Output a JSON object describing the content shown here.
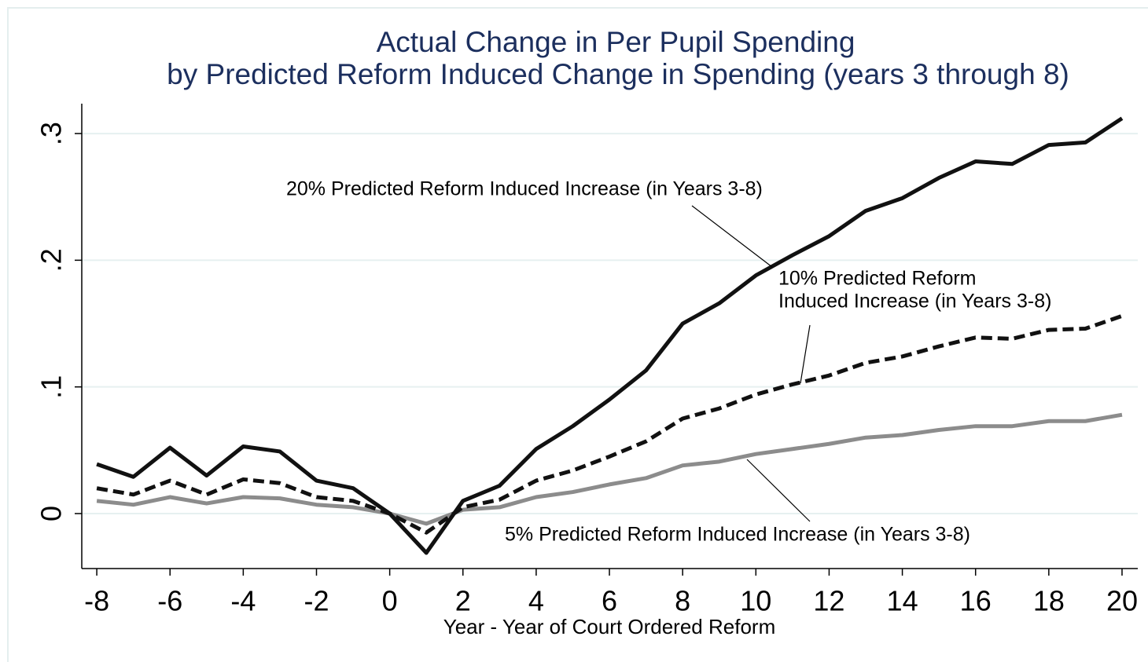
{
  "chart_data": {
    "type": "line",
    "title": [
      "Actual Change in Per Pupil Spending",
      "by Predicted Reform Induced Change in Spending (years 3 through 8)"
    ],
    "xlabel": "Year - Year of Court Ordered Reform",
    "x": [
      -8,
      -7,
      -6,
      -5,
      -4,
      -3,
      -2,
      -1,
      0,
      1,
      2,
      3,
      4,
      5,
      6,
      7,
      8,
      9,
      10,
      11,
      12,
      13,
      14,
      15,
      16,
      17,
      18,
      19,
      20
    ],
    "series": [
      {
        "color": "#111111",
        "style": "solid",
        "values": [
          0.039,
          0.029,
          0.052,
          0.03,
          0.053,
          0.049,
          0.026,
          0.02,
          0,
          -0.031,
          0.01,
          0.022,
          0.051,
          0.069,
          0.09,
          0.113,
          0.15,
          0.166,
          0.188,
          0.204,
          0.219,
          0.239,
          0.249,
          0.265,
          0.278,
          0.276,
          0.291,
          0.293,
          0.312
        ]
      },
      {
        "color": "#111111",
        "style": "dashed",
        "values": [
          0.02,
          0.015,
          0.026,
          0.015,
          0.027,
          0.024,
          0.013,
          0.01,
          0,
          -0.015,
          0.005,
          0.011,
          0.026,
          0.034,
          0.045,
          0.057,
          0.075,
          0.083,
          0.094,
          0.102,
          0.109,
          0.119,
          0.124,
          0.132,
          0.139,
          0.138,
          0.145,
          0.146,
          0.156
        ]
      },
      {
        "color": "#8c8c8c",
        "style": "solid",
        "values": [
          0.01,
          0.007,
          0.013,
          0.008,
          0.013,
          0.012,
          0.007,
          0.005,
          0,
          -0.008,
          0.003,
          0.005,
          0.013,
          0.017,
          0.023,
          0.028,
          0.038,
          0.041,
          0.047,
          0.051,
          0.055,
          0.06,
          0.062,
          0.066,
          0.069,
          0.069,
          0.073,
          0.073,
          0.078
        ]
      }
    ],
    "annotations": [
      {
        "lines": [
          "20% Predicted Reform Induced Increase (in Years 3-8)"
        ]
      },
      {
        "lines": [
          "10% Predicted Reform",
          "Induced Increase (in Years 3-8)"
        ]
      },
      {
        "lines": [
          "5% Predicted Reform Induced Increase (in Years 3-8)"
        ]
      }
    ],
    "xlim": [
      -8.41,
      20.43
    ],
    "xticks": [
      -8,
      -6,
      -4,
      -2,
      0,
      2,
      4,
      6,
      8,
      10,
      12,
      14,
      16,
      18,
      20
    ],
    "ylim": [
      -0.0434,
      0.3236
    ],
    "yticks": [
      0,
      {
        "value": 0.1,
        "label": ".1"
      },
      {
        "value": 0.2,
        "label": ".2"
      },
      {
        "value": 0.3,
        "label": ".3"
      }
    ],
    "grid": true
  }
}
